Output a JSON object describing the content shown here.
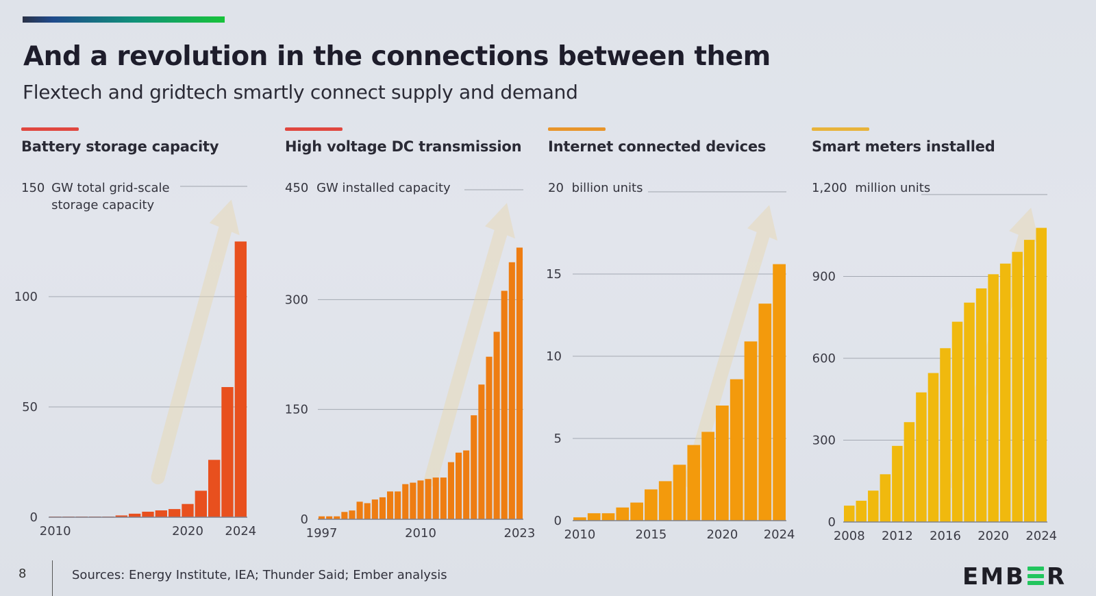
{
  "slide": {
    "title": "And a revolution in the connections between them",
    "subtitle": "Flextech and gridtech smartly connect supply and demand",
    "page_number": "8",
    "sources": "Sources: Energy Institute, IEA; Thunder Said; Ember analysis",
    "logo": {
      "left": "EMB",
      "right": "R"
    },
    "accent_gradient": [
      "#2a3247",
      "#1f4a8c",
      "#10917a",
      "#17c33a"
    ]
  },
  "chart_data": [
    {
      "type": "bar",
      "title": "Battery storage capacity",
      "title_accent": "#e0473f",
      "bar_color": "#e8501e",
      "unit_label": "GW total grid-scale storage capacity",
      "unit_label_top_value": "150",
      "ylabel": "GW total grid-scale storage capacity",
      "xlabel": "",
      "ylim": [
        0,
        150
      ],
      "yticks": [
        0,
        50,
        100
      ],
      "ytick_labels": [
        "0",
        "50",
        "100"
      ],
      "xtick_labels": [
        "2010",
        "2020",
        "2024"
      ],
      "grid": true,
      "trend_arrow": true,
      "categories": [
        "2010",
        "2011",
        "2012",
        "2013",
        "2014",
        "2015",
        "2016",
        "2017",
        "2018",
        "2019",
        "2020",
        "2021",
        "2022",
        "2023",
        "2024"
      ],
      "values": [
        0.1,
        0.1,
        0.1,
        0.1,
        0.2,
        0.8,
        1.6,
        2.5,
        3.1,
        3.7,
        6,
        12,
        26,
        59,
        125
      ]
    },
    {
      "type": "bar",
      "title": "High voltage DC transmission",
      "title_accent": "#e0473f",
      "bar_color": "#ee7d12",
      "unit_label": "GW installed capacity",
      "unit_label_top_value": "450",
      "ylabel": "GW installed capacity",
      "xlabel": "",
      "ylim": [
        0,
        450
      ],
      "yticks": [
        0,
        150,
        300
      ],
      "ytick_labels": [
        "0",
        "150",
        "300"
      ],
      "xtick_labels": [
        "1997",
        "2010",
        "2023"
      ],
      "grid": true,
      "trend_arrow": true,
      "categories": [
        "1997",
        "1998",
        "1999",
        "2000",
        "2001",
        "2002",
        "2003",
        "2004",
        "2005",
        "2006",
        "2007",
        "2008",
        "2009",
        "2010",
        "2011",
        "2012",
        "2013",
        "2014",
        "2015",
        "2016",
        "2017",
        "2018",
        "2019",
        "2020",
        "2021",
        "2022",
        "2023"
      ],
      "values": [
        4,
        4,
        4,
        10,
        12,
        24,
        22,
        27,
        30,
        38,
        38,
        48,
        50,
        53,
        55,
        57,
        57,
        78,
        91,
        94,
        142,
        184,
        222,
        256,
        312,
        351,
        371
      ]
    },
    {
      "type": "bar",
      "title": "Internet connected devices",
      "title_accent": "#e8952a",
      "bar_color": "#f39a0c",
      "unit_label": "billion units",
      "unit_label_top_value": "20",
      "ylabel": "billion units",
      "xlabel": "",
      "ylim": [
        0,
        20
      ],
      "yticks": [
        0,
        5,
        10,
        15
      ],
      "ytick_labels": [
        "0",
        "5",
        "10",
        "15"
      ],
      "xtick_labels": [
        "2010",
        "2015",
        "2020",
        "2024"
      ],
      "grid": true,
      "trend_arrow": true,
      "categories": [
        "2010",
        "2011",
        "2012",
        "2013",
        "2014",
        "2015",
        "2016",
        "2017",
        "2018",
        "2019",
        "2020",
        "2021",
        "2022",
        "2023",
        "2024"
      ],
      "values": [
        0.2,
        0.45,
        0.45,
        0.8,
        1.1,
        1.9,
        2.4,
        3.4,
        4.6,
        5.4,
        7.0,
        8.6,
        10.9,
        13.2,
        15.6
      ]
    },
    {
      "type": "bar",
      "title": "Smart meters installed",
      "title_accent": "#e8b33a",
      "bar_color": "#f0b90e",
      "unit_label": "million units",
      "unit_label_top_value": "1,200",
      "ylabel": "million units",
      "xlabel": "",
      "ylim": [
        0,
        1200
      ],
      "yticks": [
        0,
        300,
        600,
        900
      ],
      "ytick_labels": [
        "0",
        "300",
        "600",
        "900"
      ],
      "xtick_labels": [
        "2008",
        "2012",
        "2016",
        "2020",
        "2024"
      ],
      "grid": true,
      "trend_arrow": true,
      "categories": [
        "2008",
        "2009",
        "2010",
        "2011",
        "2012",
        "2013",
        "2014",
        "2015",
        "2016",
        "2017",
        "2018",
        "2019",
        "2020",
        "2021",
        "2022",
        "2023",
        "2024"
      ],
      "values": [
        60,
        78,
        115,
        175,
        279,
        366,
        475,
        546,
        637,
        734,
        804,
        856,
        908,
        947,
        990,
        1034,
        1078
      ]
    }
  ]
}
